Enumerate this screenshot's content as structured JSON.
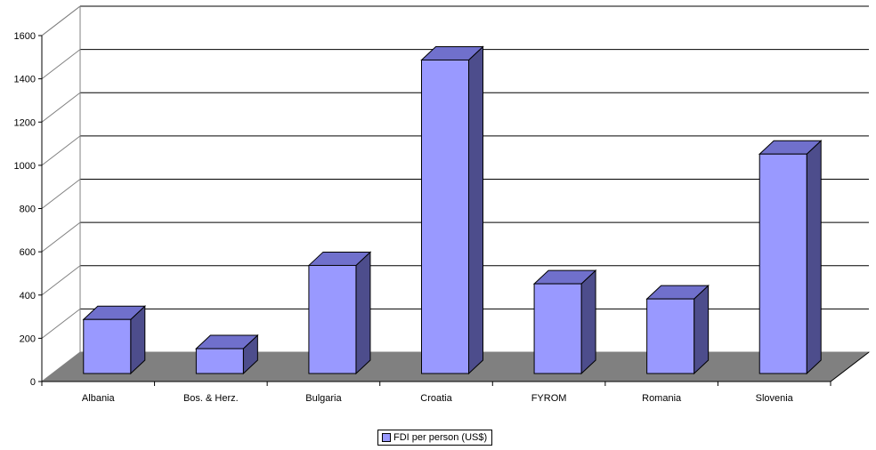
{
  "chart_data": {
    "type": "bar",
    "categories": [
      "Albania",
      "Bos. & Herz.",
      "Bulgaria",
      "Croatia",
      "FYROM",
      "Romania",
      "Slovenia"
    ],
    "series": [
      {
        "name": "FDI per person (US$)",
        "values": [
          250,
          115,
          500,
          1450,
          415,
          345,
          1015
        ]
      }
    ],
    "ylim": [
      0,
      1600
    ],
    "yticks": [
      0,
      200,
      400,
      600,
      800,
      1000,
      1200,
      1400,
      1600
    ],
    "grid": true,
    "legend": "bottom",
    "style": "3d-column",
    "colors": {
      "bar_front": "#9999ff",
      "bar_side": "#4d4d8c",
      "bar_top": "#7070cc",
      "floor": "#808080",
      "grid": "#000000"
    }
  }
}
